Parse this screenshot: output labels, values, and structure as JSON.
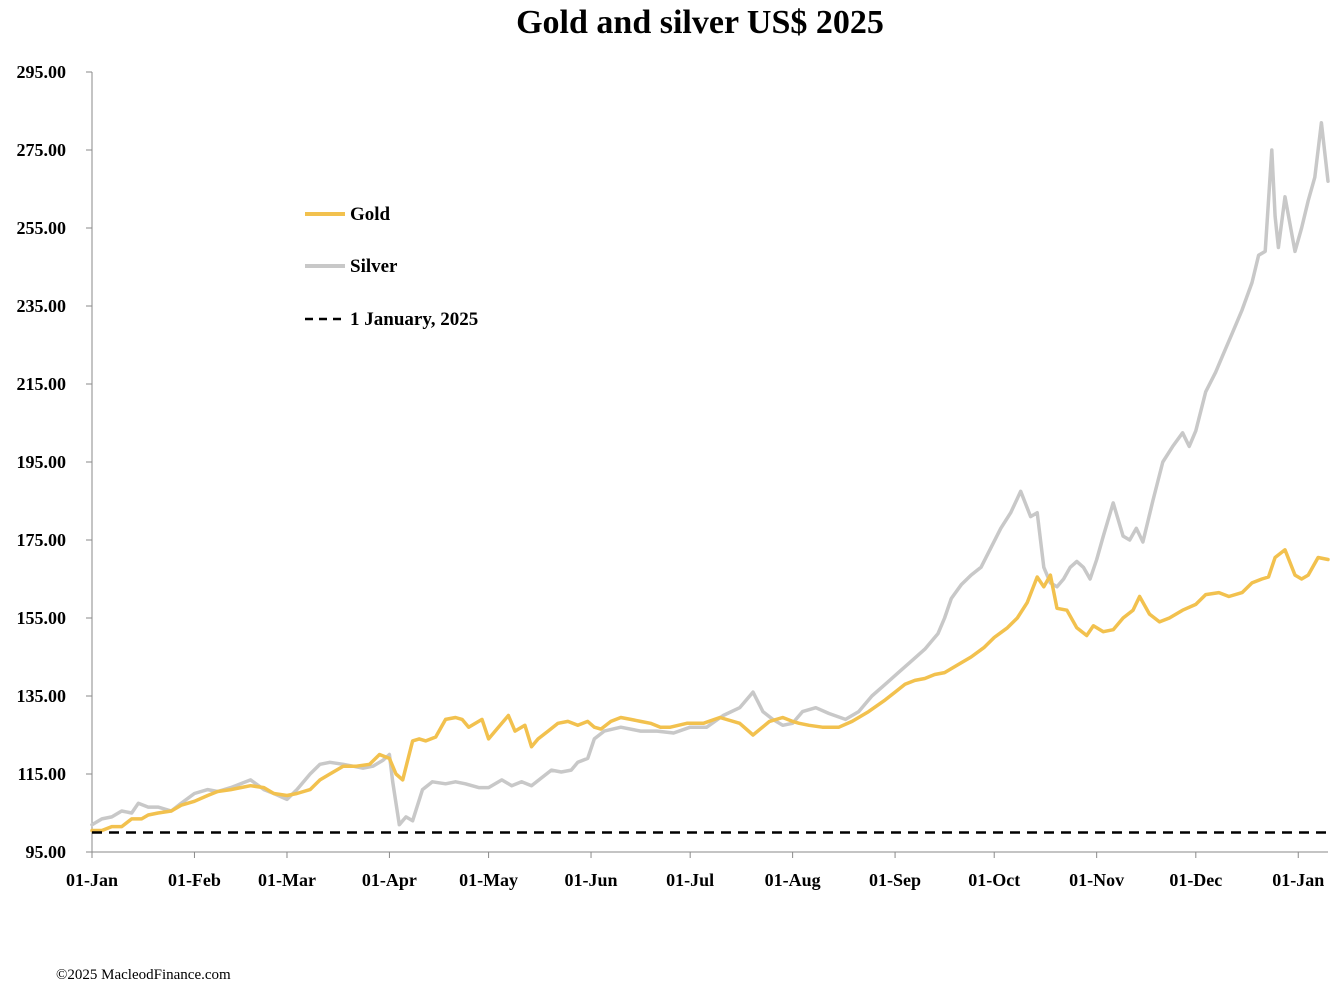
{
  "chart_data": {
    "type": "line",
    "title": "Gold and silver  US$ 2025",
    "xlabel": "",
    "ylabel": "",
    "ylim": [
      95,
      295
    ],
    "y_ticks": [
      95,
      115,
      135,
      155,
      175,
      195,
      215,
      235,
      255,
      275,
      295
    ],
    "y_tick_labels": [
      "95.00",
      "115.00",
      "135.00",
      "155.00",
      "175.00",
      "195.00",
      "215.00",
      "235.00",
      "255.00",
      "275.00",
      "295.00"
    ],
    "x_range_days": [
      0,
      374
    ],
    "x_ticks": [
      {
        "day": 0,
        "label": "01-Jan"
      },
      {
        "day": 31,
        "label": "01-Feb"
      },
      {
        "day": 59,
        "label": "01-Mar"
      },
      {
        "day": 90,
        "label": "01-Apr"
      },
      {
        "day": 120,
        "label": "01-May"
      },
      {
        "day": 151,
        "label": "01-Jun"
      },
      {
        "day": 181,
        "label": "01-Jul"
      },
      {
        "day": 212,
        "label": "01-Aug"
      },
      {
        "day": 243,
        "label": "01-Sep"
      },
      {
        "day": 273,
        "label": "01-Oct"
      },
      {
        "day": 304,
        "label": "01-Nov"
      },
      {
        "day": 334,
        "label": "01-Dec"
      },
      {
        "day": 365,
        "label": "01-Jan"
      }
    ],
    "legend_position": "upper-left",
    "series": [
      {
        "name": "Gold",
        "color": "#F2C14E",
        "style": "solid",
        "x": [
          0,
          3,
          6,
          9,
          12,
          15,
          17,
          20,
          24,
          27,
          31,
          35,
          38,
          42,
          45,
          48,
          52,
          55,
          59,
          62,
          66,
          69,
          72,
          76,
          80,
          84,
          87,
          90,
          92,
          94,
          97,
          99,
          101,
          104,
          107,
          110,
          112,
          114,
          118,
          120,
          124,
          126,
          128,
          131,
          133,
          135,
          138,
          141,
          144,
          147,
          150,
          152,
          154,
          157,
          160,
          163,
          166,
          169,
          172,
          175,
          180,
          185,
          190,
          196,
          200,
          205,
          209,
          212,
          214,
          217,
          221,
          226,
          230,
          235,
          240,
          243,
          246,
          249,
          252,
          255,
          258,
          262,
          266,
          270,
          273,
          277,
          280,
          283,
          286,
          288,
          290,
          292,
          295,
          298,
          301,
          303,
          306,
          309,
          312,
          315,
          317,
          320,
          323,
          326,
          330,
          334,
          337,
          341,
          344,
          348,
          351,
          354,
          356,
          358,
          361,
          364,
          366,
          368,
          371,
          374
        ],
        "values": [
          100.5,
          100.5,
          101.5,
          101.5,
          103.5,
          103.5,
          104.5,
          105,
          105.5,
          107,
          108,
          109.5,
          110.5,
          111,
          111.5,
          112,
          111.5,
          110,
          109.5,
          110,
          111,
          113.5,
          115,
          117,
          117,
          117.5,
          120,
          119,
          115,
          113.5,
          123.5,
          124,
          123.5,
          124.5,
          129,
          129.5,
          129,
          127,
          129,
          124,
          128,
          130,
          126,
          127.5,
          122,
          124,
          126,
          128,
          128.5,
          127.5,
          128.5,
          127,
          126.5,
          128.5,
          129.5,
          129,
          128.5,
          128,
          127,
          127,
          128,
          128,
          129.5,
          128,
          125,
          128.5,
          129.5,
          128.5,
          128,
          127.5,
          127,
          127,
          128.5,
          131,
          134,
          136,
          138,
          139,
          139.5,
          140.5,
          141,
          143,
          145,
          147.5,
          150,
          152.5,
          155,
          159,
          165.5,
          163,
          166,
          157.5,
          157,
          152.5,
          150.5,
          153,
          151.5,
          152,
          155,
          157,
          160.5,
          156,
          154,
          155,
          157,
          158.5,
          161,
          161.5,
          160.5,
          161.5,
          164,
          165,
          165.5,
          170.5,
          172.5,
          166,
          165,
          166,
          170.5,
          170
        ]
      },
      {
        "name": "Silver",
        "color": "#C8C8C8",
        "style": "solid",
        "x": [
          0,
          3,
          6,
          9,
          12,
          14,
          17,
          20,
          24,
          27,
          31,
          35,
          38,
          42,
          45,
          48,
          52,
          55,
          59,
          62,
          66,
          69,
          72,
          76,
          79,
          82,
          85,
          88,
          90,
          91,
          93,
          95,
          97,
          100,
          103,
          107,
          110,
          113,
          117,
          120,
          124,
          127,
          130,
          133,
          136,
          139,
          142,
          145,
          147,
          150,
          152,
          155,
          160,
          166,
          171,
          176,
          181,
          186,
          191,
          196,
          200,
          203,
          206,
          209,
          212,
          215,
          219,
          223,
          228,
          232,
          236,
          240,
          244,
          248,
          252,
          256,
          258,
          260,
          263,
          266,
          269,
          272,
          275,
          278,
          281,
          284,
          286,
          288,
          290,
          292,
          294,
          296,
          298,
          300,
          302,
          304,
          306,
          309,
          312,
          314,
          316,
          318,
          321,
          324,
          327,
          330,
          332,
          334,
          337,
          340,
          342,
          345,
          348,
          351,
          353,
          355,
          357,
          358,
          359,
          361,
          364,
          366,
          368,
          370,
          372,
          374
        ],
        "values": [
          102,
          103.5,
          104,
          105.5,
          105,
          107.5,
          106.5,
          106.5,
          105.5,
          107.5,
          110,
          111,
          110.5,
          111.5,
          112.5,
          113.5,
          111,
          110,
          108.5,
          111,
          115,
          117.5,
          118,
          117.5,
          117,
          116.5,
          117,
          118.5,
          120,
          113,
          102,
          104,
          103,
          111,
          113,
          112.5,
          113,
          112.5,
          111.5,
          111.5,
          113.5,
          112,
          113,
          112,
          114,
          116,
          115.5,
          116,
          118,
          119,
          124,
          126,
          127,
          126,
          126,
          125.5,
          127,
          127,
          130,
          132,
          136,
          131,
          129,
          127.5,
          128,
          131,
          132,
          130.5,
          129,
          131,
          135,
          138,
          141,
          144,
          147,
          151,
          155,
          160,
          163.5,
          166,
          168,
          173,
          178,
          182,
          187.5,
          181,
          182,
          168,
          164,
          163,
          165,
          168,
          169.5,
          168,
          165,
          170,
          176,
          184.5,
          176,
          175,
          178,
          174.5,
          185,
          195,
          199,
          202.5,
          199,
          203,
          213,
          218,
          222,
          228,
          234,
          241,
          248,
          249,
          275,
          258,
          250,
          263,
          249,
          255,
          262,
          268,
          282,
          267
        ]
      },
      {
        "name": "1 January, 2025",
        "color": "#000000",
        "style": "dashed",
        "x": [
          0,
          374
        ],
        "values": [
          100,
          100
        ]
      }
    ]
  },
  "footer": {
    "copyright": "©2025 MacleodFinance.com"
  }
}
